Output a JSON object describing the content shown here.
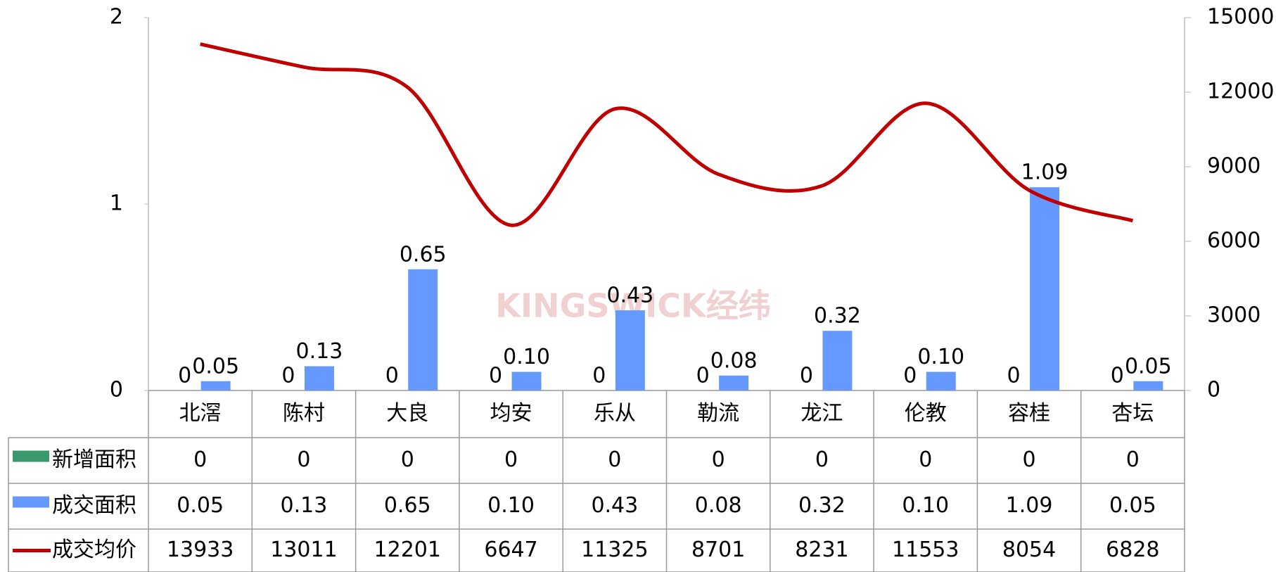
{
  "chart_data": {
    "type": "combo",
    "watermark": "KINGSWICK经纬",
    "categories": [
      "北滘",
      "陈村",
      "大良",
      "均安",
      "乐从",
      "勒流",
      "龙江",
      "伦教",
      "容桂",
      "杏坛"
    ],
    "series": [
      {
        "name": "新增面积",
        "color": "#3a9a6e",
        "kind": "bar",
        "values": [
          0,
          0,
          0,
          0,
          0,
          0,
          0,
          0,
          0,
          0
        ]
      },
      {
        "name": "成交面积",
        "color": "#6699ff",
        "kind": "bar",
        "values": [
          0.05,
          0.13,
          0.65,
          0.1,
          0.43,
          0.08,
          0.32,
          0.1,
          1.09,
          0.05
        ],
        "value_labels": [
          "0.05",
          "0.13",
          "0.65",
          "0.10",
          "0.43",
          "0.08",
          "0.32",
          "0.10",
          "1.09",
          "0.05"
        ]
      },
      {
        "name": "成交均价",
        "color": "#c00000",
        "kind": "line",
        "axis": "y2",
        "values": [
          13933,
          13011,
          12201,
          6647,
          11325,
          8701,
          8231,
          11553,
          8054,
          6828
        ]
      }
    ],
    "ylim": [
      0,
      2
    ],
    "yticks": [
      0,
      1,
      2
    ],
    "y2lim": [
      0,
      15000
    ],
    "y2ticks": [
      0,
      3000,
      6000,
      9000,
      12000,
      15000
    ]
  }
}
